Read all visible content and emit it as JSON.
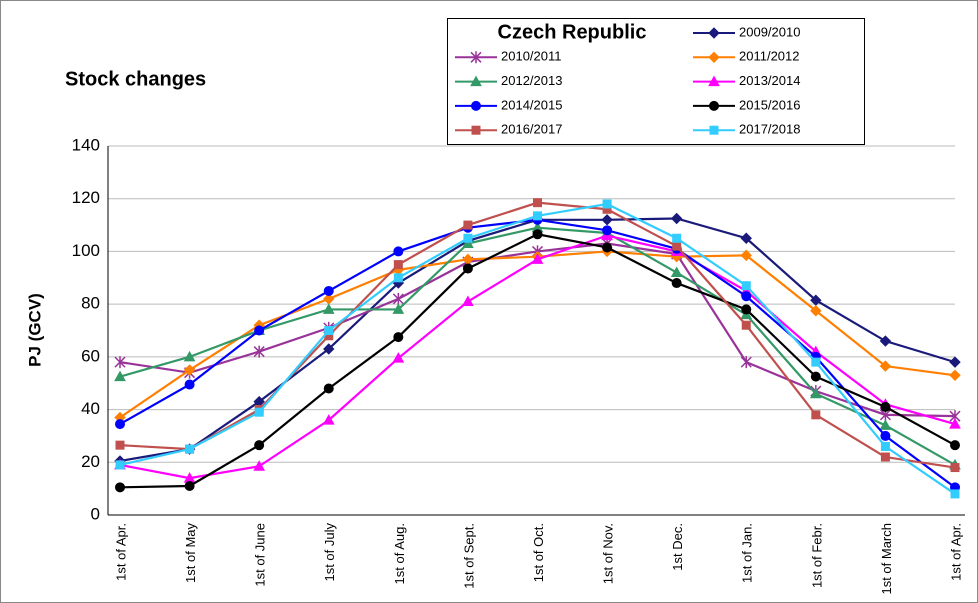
{
  "chart_data": {
    "type": "line",
    "title": "Stock changes",
    "legend_title": "Czech Republic",
    "y_label": "PJ (GCV)",
    "categories": [
      "1st of Apr.",
      "1st of May",
      "1st of June",
      "1st of July",
      "1st of Aug.",
      "1st of Sept.",
      "1st of Oct.",
      "1st of Nov.",
      "1st Dec.",
      "1st of Jan.",
      "1st of Febr.",
      "1st of March",
      "1st of Apr."
    ],
    "ylim": [
      0,
      140
    ],
    "yticks": [
      0,
      20,
      40,
      60,
      80,
      100,
      120,
      140
    ],
    "grid": true,
    "series": [
      {
        "name": "2009/2010",
        "color": "#1a1a7a",
        "marker": "diamond",
        "values": [
          20.5,
          25,
          43,
          63,
          88,
          104,
          112,
          112,
          112.5,
          105,
          81.5,
          66,
          58
        ]
      },
      {
        "name": "2010/2011",
        "color": "#993399",
        "marker": "star",
        "values": [
          58,
          54,
          62,
          71,
          82,
          96,
          100,
          103,
          99,
          58,
          47,
          38,
          37.5
        ]
      },
      {
        "name": "2011/2012",
        "color": "#ff7f00",
        "marker": "diamond",
        "values": [
          37,
          55,
          72,
          82,
          93,
          97,
          98,
          100,
          98,
          98.5,
          77.5,
          56.5,
          53
        ]
      },
      {
        "name": "2012/2013",
        "color": "#339966",
        "marker": "triangle",
        "values": [
          52.5,
          60,
          70,
          78,
          78,
          103,
          109,
          107,
          92,
          76,
          46,
          34,
          19
        ]
      },
      {
        "name": "2013/2014",
        "color": "#ff00ff",
        "marker": "triangle",
        "values": [
          19,
          14,
          18.5,
          36,
          59.5,
          81,
          97,
          106,
          100,
          85,
          62,
          42,
          34.5
        ]
      },
      {
        "name": "2014/2015",
        "color": "#0000ff",
        "marker": "circle",
        "values": [
          34.5,
          49.5,
          70,
          85,
          100,
          109,
          112,
          108,
          101,
          83,
          60,
          30,
          10.5
        ]
      },
      {
        "name": "2015/2016",
        "color": "#000000",
        "marker": "circle",
        "values": [
          10.5,
          11,
          26.5,
          48,
          67.5,
          93.5,
          106.5,
          101.5,
          88,
          78,
          52.5,
          41,
          26.5
        ]
      },
      {
        "name": "2016/2017",
        "color": "#c0504d",
        "marker": "square",
        "values": [
          26.5,
          25,
          40,
          68,
          95,
          110,
          118.5,
          116,
          102,
          72,
          38,
          22,
          18
        ]
      },
      {
        "name": "2017/2018",
        "color": "#33ccff",
        "marker": "square",
        "values": [
          19,
          25,
          39,
          70,
          90,
          105,
          113.5,
          118,
          105,
          87,
          58,
          26,
          8
        ]
      }
    ]
  }
}
